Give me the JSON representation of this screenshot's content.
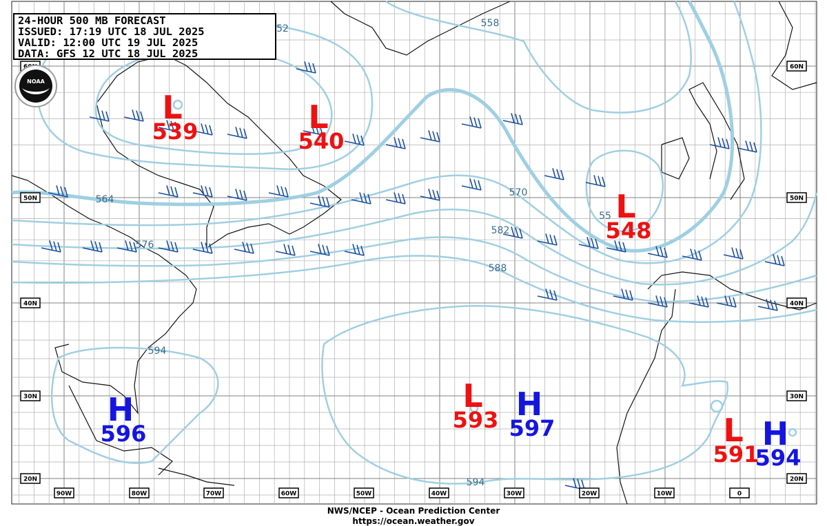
{
  "header": {
    "lines": [
      "24-HOUR 500 MB FORECAST",
      "ISSUED: 17:19 UTC 18 JUL 2025",
      "VALID:  12:00 UTC 19 JUL 2025",
      "DATA:  GFS 12 UTC 18 JUL 2025"
    ]
  },
  "logo": {
    "text": "NOAA"
  },
  "grid": {
    "lat_labels": [
      "60N",
      "50N",
      "40N",
      "30N",
      "20N"
    ],
    "lon_labels": [
      "90W",
      "80W",
      "70W",
      "60W",
      "50W",
      "40W",
      "30W",
      "20W",
      "10W",
      "0"
    ]
  },
  "contour_labels": [
    "52",
    "558",
    "564",
    "576",
    "570",
    "582",
    "588",
    "594",
    "594",
    "55"
  ],
  "centers": [
    {
      "symbol": "L",
      "value": "539"
    },
    {
      "symbol": "L",
      "value": "540"
    },
    {
      "symbol": "L",
      "value": "548"
    },
    {
      "symbol": "L",
      "value": "593"
    },
    {
      "symbol": "H",
      "value": "597"
    },
    {
      "symbol": "H",
      "value": "596"
    },
    {
      "symbol": "L",
      "value": "591"
    },
    {
      "symbol": "H",
      "value": "594"
    }
  ],
  "footer": {
    "lines": [
      "NWS/NCEP - Ocean Prediction Center",
      "https://ocean.weather.gov"
    ]
  }
}
